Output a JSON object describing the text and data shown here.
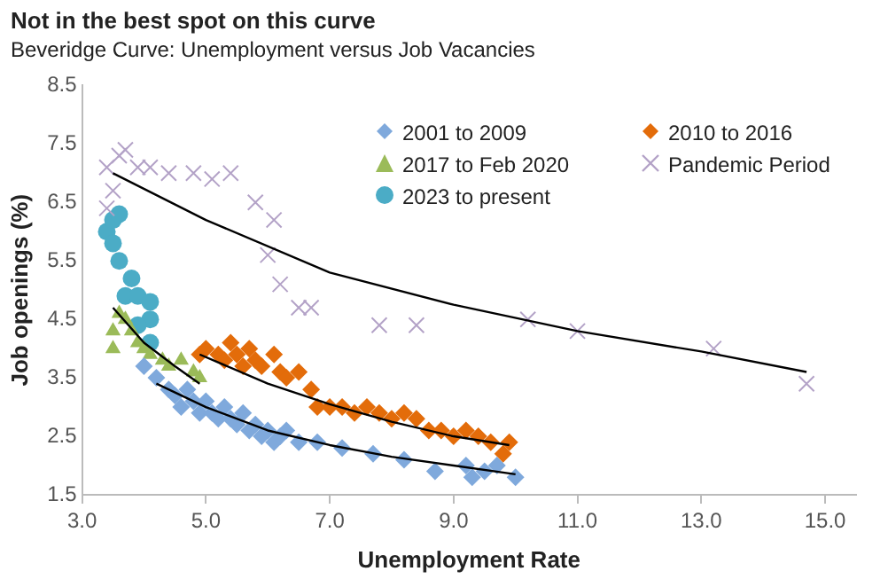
{
  "chart_data": {
    "type": "scatter",
    "title": "Not in the best spot on this curve",
    "subtitle": "Beveridge Curve: Unemployment versus Job Vacancies",
    "xlabel": "Unemployment Rate",
    "ylabel": "Job openings (%)",
    "xlim": [
      3,
      15.5
    ],
    "xticks": [
      {
        "value": 3,
        "label": "3.0"
      },
      {
        "value": 5,
        "label": "5.0"
      },
      {
        "value": 7,
        "label": "7.0"
      },
      {
        "value": 9,
        "label": "9.0"
      },
      {
        "value": 11,
        "label": "11.0"
      },
      {
        "value": 13,
        "label": "13.0"
      },
      {
        "value": 15,
        "label": "15.0"
      }
    ],
    "ylim": [
      1.5,
      8.5
    ],
    "yticks": [
      1.5,
      2.5,
      3.5,
      4.5,
      5.5,
      6.5,
      7.5,
      8.5
    ],
    "grid": false,
    "legend": "top right",
    "series": [
      {
        "name": "2001 to 2009",
        "color": "#7fa9dc",
        "marker": "diamond",
        "x": [
          4.0,
          4.2,
          4.4,
          4.5,
          4.6,
          4.7,
          4.8,
          4.9,
          5.0,
          5.1,
          5.2,
          5.3,
          5.4,
          5.5,
          5.6,
          5.7,
          5.8,
          5.9,
          6.0,
          6.1,
          6.2,
          6.3,
          6.5,
          6.8,
          7.2,
          7.7,
          8.2,
          8.7,
          9.2,
          9.3,
          9.5,
          9.7,
          10.0
        ],
        "values": [
          3.7,
          3.5,
          3.3,
          3.2,
          3.0,
          3.3,
          3.1,
          2.9,
          3.1,
          2.9,
          2.8,
          3.0,
          2.8,
          2.7,
          2.9,
          2.6,
          2.7,
          2.5,
          2.6,
          2.4,
          2.5,
          2.6,
          2.4,
          2.4,
          2.3,
          2.2,
          2.1,
          1.9,
          2.0,
          1.8,
          1.9,
          2.0,
          1.8
        ]
      },
      {
        "name": "2010 to 2016",
        "color": "#e36c0a",
        "marker": "diamond",
        "x": [
          4.9,
          5.0,
          5.2,
          5.3,
          5.4,
          5.5,
          5.6,
          5.7,
          5.8,
          5.9,
          6.1,
          6.2,
          6.3,
          6.5,
          6.7,
          6.8,
          7.0,
          7.2,
          7.4,
          7.6,
          7.8,
          8.0,
          8.2,
          8.4,
          8.6,
          8.8,
          9.0,
          9.2,
          9.4,
          9.6,
          9.8,
          9.9
        ],
        "values": [
          3.9,
          4.0,
          3.9,
          3.8,
          4.1,
          3.9,
          3.7,
          4.0,
          3.8,
          3.7,
          3.9,
          3.6,
          3.5,
          3.6,
          3.3,
          3.0,
          3.0,
          3.0,
          2.9,
          3.0,
          2.9,
          2.8,
          2.9,
          2.8,
          2.6,
          2.6,
          2.5,
          2.6,
          2.5,
          2.4,
          2.2,
          2.4
        ]
      },
      {
        "name": "2017 to Feb 2020",
        "color": "#9bbb59",
        "marker": "triangle",
        "x": [
          3.5,
          3.6,
          3.7,
          3.5,
          3.8,
          3.9,
          4.0,
          4.1,
          4.3,
          4.4,
          4.6,
          4.8,
          4.9
        ],
        "values": [
          4.3,
          4.6,
          4.5,
          4.0,
          4.3,
          4.1,
          4.0,
          3.9,
          3.8,
          3.7,
          3.8,
          3.6,
          3.5
        ]
      },
      {
        "name": "Pandemic Period",
        "color": "#b3a2c7",
        "marker": "cross",
        "x": [
          3.4,
          3.6,
          3.7,
          3.9,
          4.1,
          4.4,
          4.8,
          5.1,
          5.4,
          5.8,
          6.1,
          6.0,
          6.2,
          6.5,
          6.7,
          7.8,
          8.4,
          10.2,
          11.0,
          13.2,
          14.7,
          3.5,
          3.4
        ],
        "values": [
          7.1,
          7.3,
          7.4,
          7.1,
          7.1,
          7.0,
          7.0,
          6.9,
          7.0,
          6.5,
          6.2,
          5.6,
          5.1,
          4.7,
          4.7,
          4.4,
          4.4,
          4.5,
          4.3,
          4.0,
          3.4,
          6.7,
          6.4
        ]
      },
      {
        "name": "2023 to present",
        "color": "#4bacc6",
        "marker": "circle",
        "x": [
          3.4,
          3.5,
          3.6,
          3.5,
          3.6,
          3.8,
          3.7,
          3.9,
          4.1,
          4.1,
          4.1,
          3.9
        ],
        "values": [
          6.0,
          6.2,
          6.3,
          5.8,
          5.5,
          5.2,
          4.9,
          4.9,
          4.8,
          4.5,
          4.1,
          4.4
        ]
      },
      {
        "type": "line",
        "color": "#000000",
        "marker": "none",
        "x": [
          4.2,
          5,
          6,
          7,
          8,
          9,
          10
        ],
        "values": [
          3.4,
          3.0,
          2.6,
          2.35,
          2.15,
          2.0,
          1.85
        ]
      },
      {
        "type": "line",
        "color": "#000000",
        "marker": "none",
        "x": [
          4.9,
          6,
          7,
          8,
          9,
          9.9
        ],
        "values": [
          3.9,
          3.4,
          3.05,
          2.75,
          2.5,
          2.35
        ]
      },
      {
        "type": "line",
        "color": "#000000",
        "marker": "none",
        "x": [
          3.5,
          4.0,
          4.5,
          4.9
        ],
        "values": [
          4.7,
          4.1,
          3.7,
          3.4
        ]
      },
      {
        "type": "line",
        "color": "#000000",
        "marker": "none",
        "x": [
          3.5,
          5,
          7,
          9,
          11,
          13,
          14.7
        ],
        "values": [
          7.0,
          6.2,
          5.3,
          4.75,
          4.3,
          3.95,
          3.6
        ]
      }
    ]
  }
}
